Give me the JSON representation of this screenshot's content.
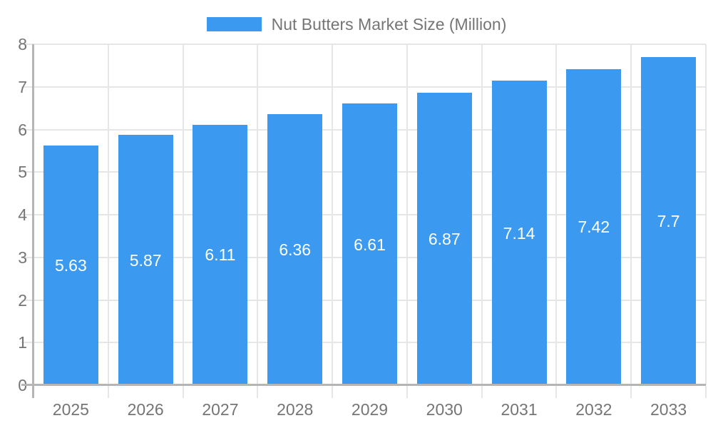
{
  "chart_data": {
    "type": "bar",
    "title": "Nut Butters Market Size (Million)",
    "legend": {
      "position": "top",
      "label": "Nut Butters Market Size (Million)"
    },
    "categories": [
      "2025",
      "2026",
      "2027",
      "2028",
      "2029",
      "2030",
      "2031",
      "2032",
      "2033"
    ],
    "series": [
      {
        "name": "Nut Butters Market Size (Million)",
        "values": [
          5.63,
          5.87,
          6.11,
          6.36,
          6.61,
          6.87,
          7.14,
          7.42,
          7.7
        ],
        "value_labels": [
          "5.63",
          "5.87",
          "6.11",
          "6.36",
          "6.61",
          "6.87",
          "7.14",
          "7.42",
          "7.7"
        ]
      }
    ],
    "xlabel": "",
    "ylabel": "",
    "ylim": [
      0,
      8
    ],
    "yticks": [
      0,
      1,
      2,
      3,
      4,
      5,
      6,
      7,
      8
    ],
    "ytick_labels": [
      "0",
      "1",
      "2",
      "3",
      "4",
      "5",
      "6",
      "7",
      "8"
    ],
    "grid": true,
    "colors": {
      "bar": "#3B9AF0",
      "grid": "#e6e6e6",
      "axis": "#b5b5b5",
      "text": "#757575",
      "value_label": "#ffffff",
      "background": "#ffffff"
    }
  }
}
